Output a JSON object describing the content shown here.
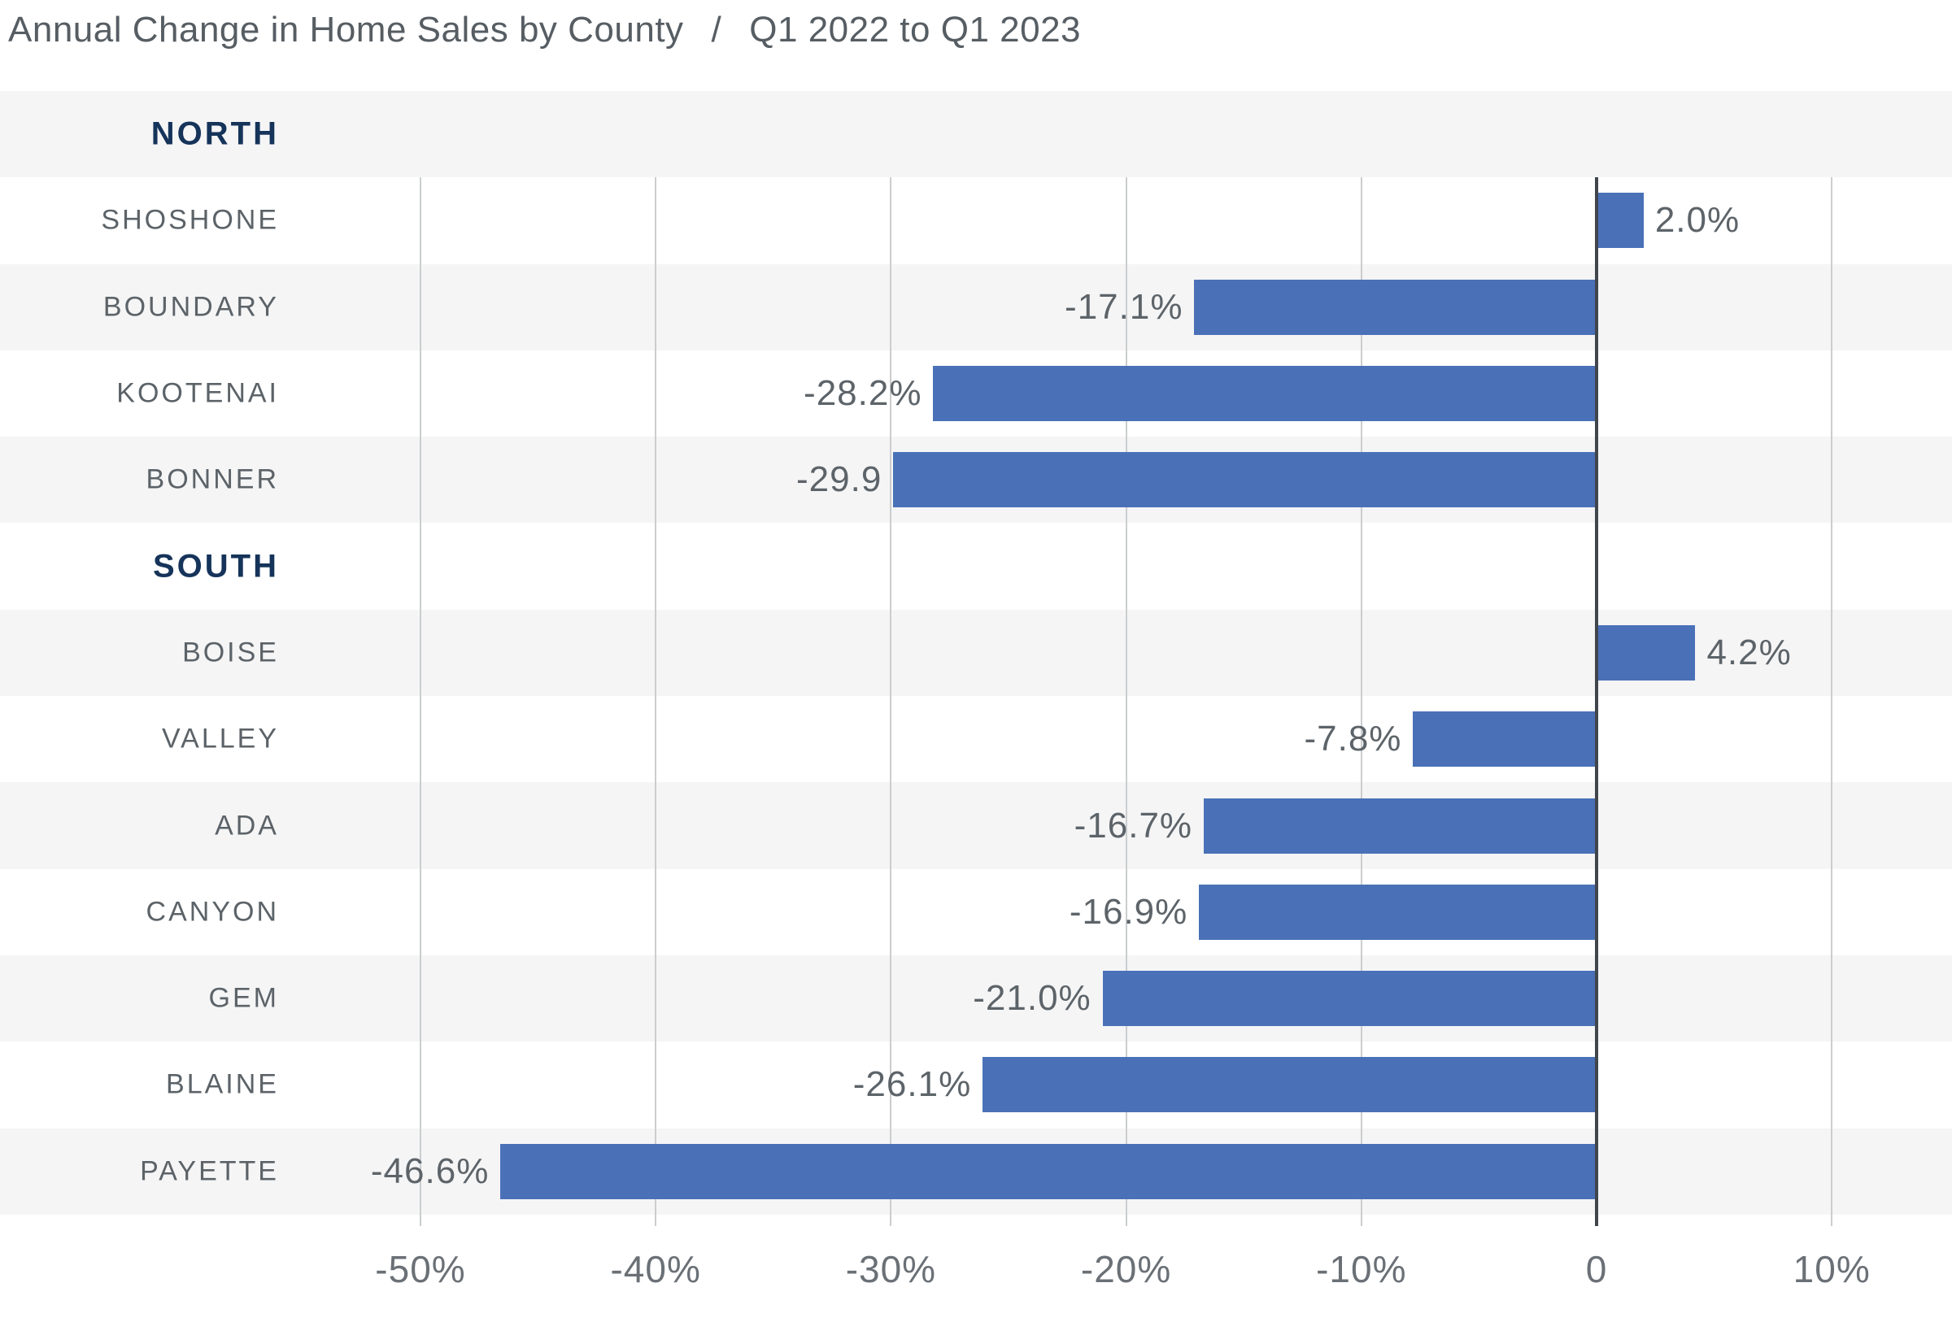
{
  "title": {
    "main": "Annual Change in Home Sales by County",
    "separator": "/",
    "subtitle": "Q1 2022 to Q1 2023"
  },
  "colors": {
    "bar": "#4a71b7",
    "band_shade": "#f5f5f6",
    "band_plain": "#ffffff",
    "grid": "#cbcdce",
    "zero_line": "#40464c",
    "title_text": "#565d63",
    "group_header_text": "#16345a",
    "county_label_text": "#5c6368",
    "value_label_text": "#5d6469",
    "tick_label_text": "#6a7076"
  },
  "chart_data": {
    "type": "bar",
    "orientation": "horizontal",
    "unit": "%",
    "title": "Annual Change in Home Sales by County / Q1 2022 to Q1 2023",
    "x_axis": {
      "ticks": [
        -50,
        -40,
        -30,
        -20,
        -10,
        0,
        10
      ],
      "tick_labels": [
        "-50%",
        "-40%",
        "-30%",
        "-20%",
        "-10%",
        "0",
        "10%"
      ],
      "range": [
        -52.5,
        15.1
      ],
      "grid": true
    },
    "legend": "none",
    "groups": [
      {
        "label": "NORTH",
        "rows": [
          {
            "county": "SHOSHONE",
            "value": 2.0,
            "value_label": "2.0%"
          },
          {
            "county": "BOUNDARY",
            "value": -17.1,
            "value_label": "-17.1%"
          },
          {
            "county": "KOOTENAI",
            "value": -28.2,
            "value_label": "-28.2%"
          },
          {
            "county": "BONNER",
            "value": -29.9,
            "value_label": "-29.9"
          }
        ]
      },
      {
        "label": "SOUTH",
        "rows": [
          {
            "county": "BOISE",
            "value": 4.2,
            "value_label": "4.2%"
          },
          {
            "county": "VALLEY",
            "value": -7.8,
            "value_label": "-7.8%"
          },
          {
            "county": "ADA",
            "value": -16.7,
            "value_label": "-16.7%"
          },
          {
            "county": "CANYON",
            "value": -16.9,
            "value_label": "-16.9%"
          },
          {
            "county": "GEM",
            "value": -21.0,
            "value_label": "-21.0%"
          },
          {
            "county": "BLAINE",
            "value": -26.1,
            "value_label": "-26.1%"
          },
          {
            "county": "PAYETTE",
            "value": -46.6,
            "value_label": "-46.6%"
          }
        ]
      }
    ]
  }
}
